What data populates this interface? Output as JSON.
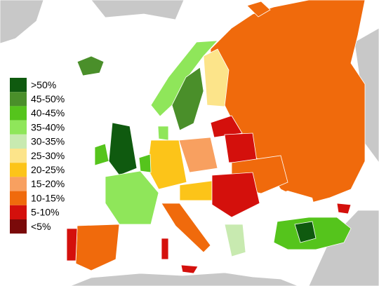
{
  "legend": {
    "items": [
      {
        "label": ">50%",
        "color": "#0f5a0f"
      },
      {
        "label": "45-50%",
        "color": "#4a8f2a"
      },
      {
        "label": "40-45%",
        "color": "#55c41c"
      },
      {
        "label": "35-40%",
        "color": "#8fe65a"
      },
      {
        "label": "30-35%",
        "color": "#c8eab0"
      },
      {
        "label": "25-30%",
        "color": "#fce48a"
      },
      {
        "label": "20-25%",
        "color": "#fcc419"
      },
      {
        "label": "15-20%",
        "color": "#f8a060"
      },
      {
        "label": "10-15%",
        "color": "#f06a0c"
      },
      {
        "label": "5-10%",
        "color": "#d4100c"
      },
      {
        "label": "<5%",
        "color": "#7a0a0a"
      }
    ]
  }
}
